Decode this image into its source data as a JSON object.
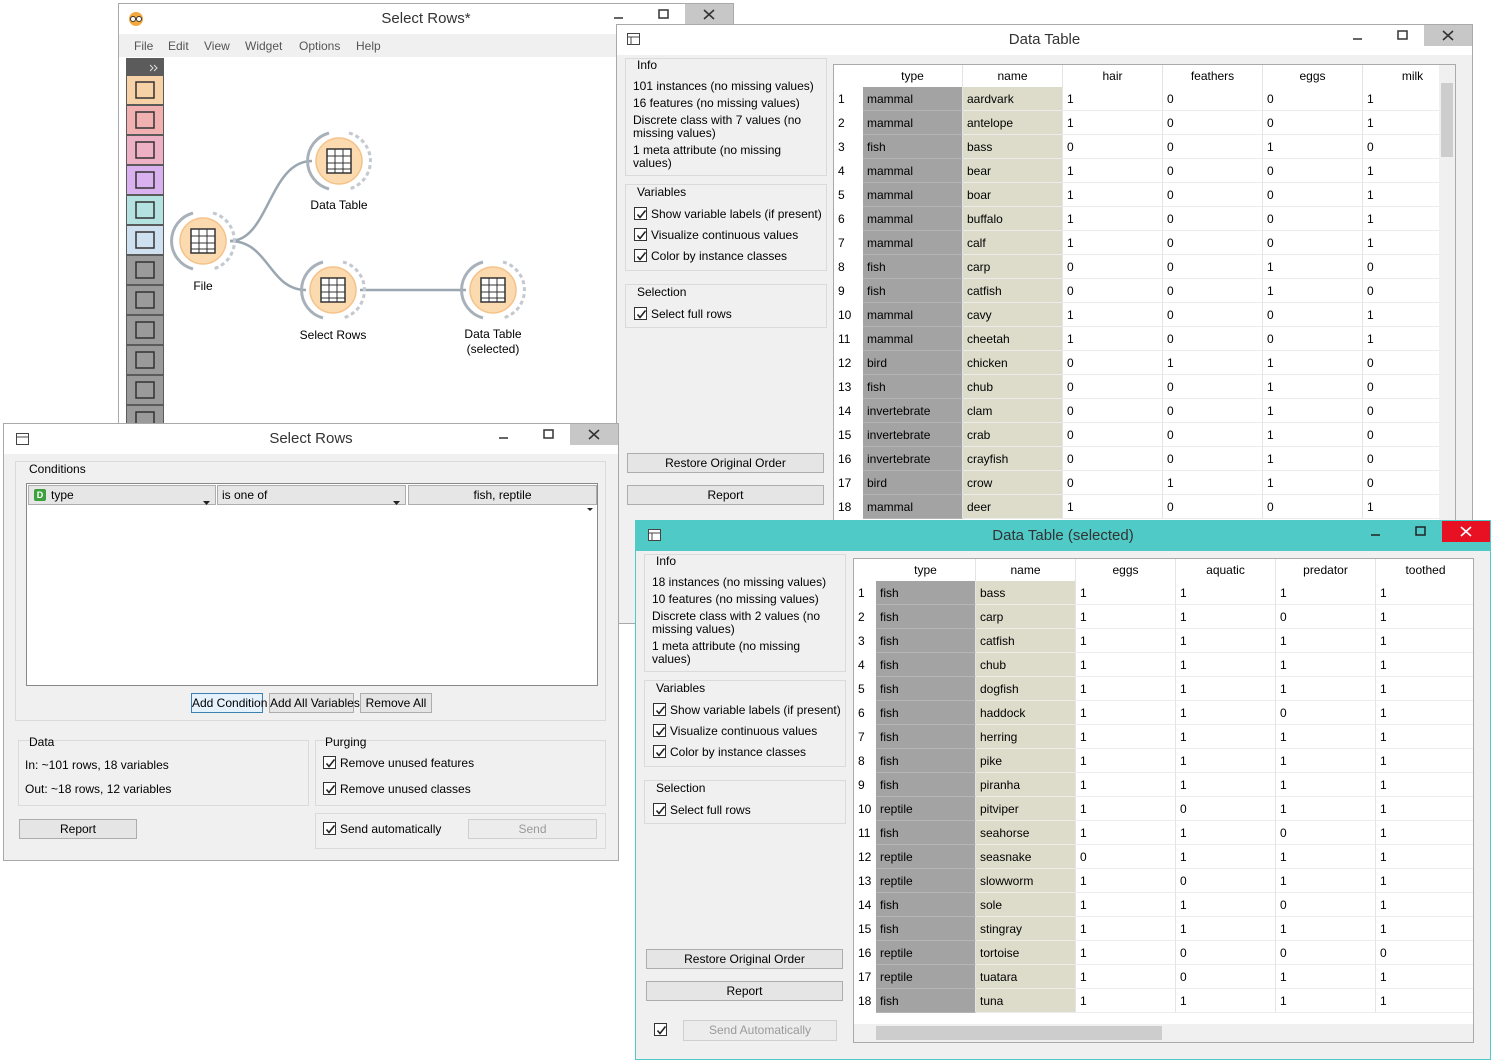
{
  "canvas_window": {
    "title": "Select Rows*",
    "menu": [
      "File",
      "Edit",
      "View",
      "Widget",
      "Options",
      "Help"
    ],
    "nodes": [
      {
        "label": "Data Table"
      },
      {
        "label": "File"
      },
      {
        "label": "Select Rows"
      },
      {
        "label": "Data Table (selected)"
      }
    ]
  },
  "data_table_window": {
    "title": "Data Table",
    "info_title": "Info",
    "info": [
      "101 instances (no missing values)",
      "16 features (no missing values)",
      "Discrete class with 7 values (no missing values)",
      "1 meta attribute (no missing values)"
    ],
    "variables_title": "Variables",
    "variables": [
      "Show variable labels (if present)",
      "Visualize continuous values",
      "Color by instance classes"
    ],
    "selection_title": "Selection",
    "selection": [
      "Select full rows"
    ],
    "buttons": [
      "Restore Original Order",
      "Report"
    ],
    "table": {
      "columns": [
        "type",
        "name",
        "hair",
        "feathers",
        "eggs",
        "milk"
      ],
      "rows": [
        [
          1,
          "mammal",
          "aardvark",
          1,
          0,
          0,
          1
        ],
        [
          2,
          "mammal",
          "antelope",
          1,
          0,
          0,
          1
        ],
        [
          3,
          "fish",
          "bass",
          0,
          0,
          1,
          0
        ],
        [
          4,
          "mammal",
          "bear",
          1,
          0,
          0,
          1
        ],
        [
          5,
          "mammal",
          "boar",
          1,
          0,
          0,
          1
        ],
        [
          6,
          "mammal",
          "buffalo",
          1,
          0,
          0,
          1
        ],
        [
          7,
          "mammal",
          "calf",
          1,
          0,
          0,
          1
        ],
        [
          8,
          "fish",
          "carp",
          0,
          0,
          1,
          0
        ],
        [
          9,
          "fish",
          "catfish",
          0,
          0,
          1,
          0
        ],
        [
          10,
          "mammal",
          "cavy",
          1,
          0,
          0,
          1
        ],
        [
          11,
          "mammal",
          "cheetah",
          1,
          0,
          0,
          1
        ],
        [
          12,
          "bird",
          "chicken",
          0,
          1,
          1,
          0
        ],
        [
          13,
          "fish",
          "chub",
          0,
          0,
          1,
          0
        ],
        [
          14,
          "invertebrate",
          "clam",
          0,
          0,
          1,
          0
        ],
        [
          15,
          "invertebrate",
          "crab",
          0,
          0,
          1,
          0
        ],
        [
          16,
          "invertebrate",
          "crayfish",
          0,
          0,
          1,
          0
        ],
        [
          17,
          "bird",
          "crow",
          0,
          1,
          1,
          0
        ],
        [
          18,
          "mammal",
          "deer",
          1,
          0,
          0,
          1
        ]
      ]
    }
  },
  "select_rows_window": {
    "title": "Select Rows",
    "conditions_title": "Conditions",
    "condition": {
      "type_badge": "D",
      "variable": "type",
      "operator": "is one of",
      "value": "fish, reptile"
    },
    "buttons": [
      "Add Condition",
      "Add All Variables",
      "Remove All"
    ],
    "data_title": "Data",
    "data_in": "In: ~101 rows, 18 variables",
    "data_out": "Out: ~18 rows, 12 variables",
    "purging_title": "Purging",
    "purging": [
      "Remove unused features",
      "Remove unused classes"
    ],
    "report": "Report",
    "send_automatically": "Send automatically",
    "send": "Send"
  },
  "selected_window": {
    "title": "Data Table (selected)",
    "info_title": "Info",
    "info": [
      "18 instances (no missing values)",
      "10 features (no missing values)",
      "Discrete class with 2 values (no missing values)",
      "1 meta attribute (no missing values)"
    ],
    "variables_title": "Variables",
    "variables": [
      "Show variable labels (if present)",
      "Visualize continuous values",
      "Color by instance classes"
    ],
    "selection_title": "Selection",
    "selection": [
      "Select full rows"
    ],
    "buttons": [
      "Restore Original Order",
      "Report"
    ],
    "send_button": "Send Automatically",
    "table": {
      "columns": [
        "type",
        "name",
        "eggs",
        "aquatic",
        "predator",
        "toothed"
      ],
      "rows": [
        [
          1,
          "fish",
          "bass",
          1,
          1,
          1,
          1
        ],
        [
          2,
          "fish",
          "carp",
          1,
          1,
          0,
          1
        ],
        [
          3,
          "fish",
          "catfish",
          1,
          1,
          1,
          1
        ],
        [
          4,
          "fish",
          "chub",
          1,
          1,
          1,
          1
        ],
        [
          5,
          "fish",
          "dogfish",
          1,
          1,
          1,
          1
        ],
        [
          6,
          "fish",
          "haddock",
          1,
          1,
          0,
          1
        ],
        [
          7,
          "fish",
          "herring",
          1,
          1,
          1,
          1
        ],
        [
          8,
          "fish",
          "pike",
          1,
          1,
          1,
          1
        ],
        [
          9,
          "fish",
          "piranha",
          1,
          1,
          1,
          1
        ],
        [
          10,
          "reptile",
          "pitviper",
          1,
          0,
          1,
          1
        ],
        [
          11,
          "fish",
          "seahorse",
          1,
          1,
          0,
          1
        ],
        [
          12,
          "reptile",
          "seasnake",
          0,
          1,
          1,
          1
        ],
        [
          13,
          "reptile",
          "slowworm",
          1,
          0,
          1,
          1
        ],
        [
          14,
          "fish",
          "sole",
          1,
          1,
          0,
          1
        ],
        [
          15,
          "fish",
          "stingray",
          1,
          1,
          1,
          1
        ],
        [
          16,
          "reptile",
          "tortoise",
          1,
          0,
          0,
          0
        ],
        [
          17,
          "reptile",
          "tuatara",
          1,
          0,
          1,
          1
        ],
        [
          18,
          "fish",
          "tuna",
          1,
          1,
          1,
          1
        ]
      ]
    }
  }
}
